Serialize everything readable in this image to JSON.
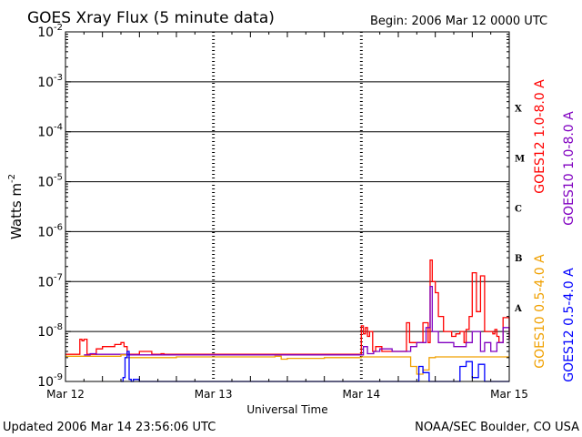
{
  "chart_data": {
    "type": "line",
    "title": "GOES Xray Flux (5 minute data)",
    "begin_label": "Begin:  2006 Mar 12 0000 UTC",
    "xlabel": "Universal Time",
    "ylabel_base": "Watts m",
    "ylabel_exp": "-2",
    "y_scale": "log",
    "ylim": [
      1e-09,
      0.01
    ],
    "xlim": [
      "2006-03-12 00:00",
      "2006-03-15 00:00"
    ],
    "x_ticks": [
      {
        "value": "2006-03-12 00:00",
        "label": "Mar 12"
      },
      {
        "value": "2006-03-13 00:00",
        "label": "Mar 13"
      },
      {
        "value": "2006-03-14 00:00",
        "label": "Mar 14"
      },
      {
        "value": "2006-03-15 00:00",
        "label": "Mar 15"
      }
    ],
    "y_ticks": [
      {
        "value": 0.01,
        "base": "10",
        "exp": "-2"
      },
      {
        "value": 0.001,
        "base": "10",
        "exp": "-3"
      },
      {
        "value": 0.0001,
        "base": "10",
        "exp": "-4"
      },
      {
        "value": 1e-05,
        "base": "10",
        "exp": "-5"
      },
      {
        "value": 1e-06,
        "base": "10",
        "exp": "-6"
      },
      {
        "value": 1e-07,
        "base": "10",
        "exp": "-7"
      },
      {
        "value": 1e-08,
        "base": "10",
        "exp": "-8"
      },
      {
        "value": 1e-09,
        "base": "10",
        "exp": "-9"
      }
    ],
    "grid_h": [
      0.001,
      0.0001,
      1e-05,
      1e-06,
      1e-07,
      1e-08
    ],
    "flare_classes": [
      {
        "label": "X",
        "value": 0.0003
      },
      {
        "label": "M",
        "value": 3e-05
      },
      {
        "label": "C",
        "value": 3e-06
      },
      {
        "label": "B",
        "value": 3e-07
      },
      {
        "label": "A",
        "value": 3e-08
      }
    ],
    "series": [
      {
        "name": "GOES12 1.0-8.0 A",
        "color": "#ff0000",
        "x": [
          "2006-03-12 00:00",
          "2006-03-12 02:00",
          "2006-03-12 02:20",
          "2006-03-12 02:40",
          "2006-03-12 03:00",
          "2006-03-12 03:30",
          "2006-03-12 04:10",
          "2006-03-12 05:00",
          "2006-03-12 06:00",
          "2006-03-12 08:00",
          "2006-03-12 09:00",
          "2006-03-12 09:30",
          "2006-03-12 10:00",
          "2006-03-12 11:30",
          "2006-03-12 12:00",
          "2006-03-12 14:00",
          "2006-03-12 15:00",
          "2006-03-12 15:30",
          "2006-03-12 16:00",
          "2006-03-12 16:30",
          "2006-03-12 17:00",
          "2006-03-12 24:00",
          "2006-03-13 06:00",
          "2006-03-13 12:00",
          "2006-03-13 18:00",
          "2006-03-13 23:30",
          "2006-03-14 00:00",
          "2006-03-14 00:20",
          "2006-03-14 00:40",
          "2006-03-14 01:00",
          "2006-03-14 01:20",
          "2006-03-14 01:50",
          "2006-03-14 02:20",
          "2006-03-14 03:20",
          "2006-03-14 04:20",
          "2006-03-14 05:00",
          "2006-03-14 06:00",
          "2006-03-14 07:20",
          "2006-03-14 07:50",
          "2006-03-14 09:10",
          "2006-03-14 10:00",
          "2006-03-14 10:50",
          "2006-03-14 11:10",
          "2006-03-14 11:30",
          "2006-03-14 12:00",
          "2006-03-14 12:30",
          "2006-03-14 13:20",
          "2006-03-14 14:00",
          "2006-03-14 14:40",
          "2006-03-14 15:20",
          "2006-03-14 16:00",
          "2006-03-14 16:40",
          "2006-03-14 17:00",
          "2006-03-14 17:30",
          "2006-03-14 18:00",
          "2006-03-14 18:40",
          "2006-03-14 19:20",
          "2006-03-14 20:00",
          "2006-03-14 21:20",
          "2006-03-14 21:40",
          "2006-03-14 22:00",
          "2006-03-14 22:20",
          "2006-03-14 23:00",
          "2006-03-15 00:00"
        ],
        "values": [
          3.5e-09,
          3.5e-09,
          7e-09,
          6.5e-09,
          7e-09,
          3.5e-09,
          3.5e-09,
          4.5e-09,
          5e-09,
          5.5e-09,
          6e-09,
          5e-09,
          3.5e-09,
          3.5e-09,
          4e-09,
          3.5e-09,
          3.5e-09,
          3.6e-09,
          3.5e-09,
          3.5e-09,
          3.5e-09,
          3.5e-09,
          3.5e-09,
          3.5e-09,
          3.5e-09,
          3.5e-09,
          1.3e-08,
          9e-09,
          1.2e-08,
          8e-09,
          1e-08,
          4e-09,
          5e-09,
          4e-09,
          4e-09,
          4e-09,
          4e-09,
          1.5e-08,
          6e-09,
          6e-09,
          1.5e-08,
          6e-09,
          2.7e-07,
          1e-07,
          6e-08,
          2e-08,
          1e-08,
          1e-08,
          8e-09,
          9e-09,
          1e-08,
          6e-09,
          1.1e-08,
          2e-08,
          1.5e-07,
          2.5e-08,
          1.3e-07,
          1e-08,
          9e-09,
          1.1e-08,
          8e-09,
          6e-09,
          1.9e-08,
          7e-09
        ]
      },
      {
        "name": "GOES10 1.0-8.0 A",
        "color": "#8000c0",
        "x": [
          "2006-03-12 03:00",
          "2006-03-12 04:00",
          "2006-03-12 05:00",
          "2006-03-12 06:00",
          "2006-03-12 08:00",
          "2006-03-12 10:00",
          "2006-03-12 12:00",
          "2006-03-12 18:00",
          "2006-03-13 00:00",
          "2006-03-13 12:00",
          "2006-03-14 00:00",
          "2006-03-14 00:20",
          "2006-03-14 01:00",
          "2006-03-14 02:00",
          "2006-03-14 03:00",
          "2006-03-14 05:00",
          "2006-03-14 07:00",
          "2006-03-14 08:00",
          "2006-03-14 09:00",
          "2006-03-14 10:30",
          "2006-03-14 11:10",
          "2006-03-14 11:30",
          "2006-03-14 12:30",
          "2006-03-14 14:00",
          "2006-03-14 15:00",
          "2006-03-14 16:00",
          "2006-03-14 17:00",
          "2006-03-14 18:00",
          "2006-03-14 19:00",
          "2006-03-14 19:20",
          "2006-03-14 20:00",
          "2006-03-14 20:30",
          "2006-03-14 21:00",
          "2006-03-14 22:00",
          "2006-03-14 23:00",
          "2006-03-15 00:00"
        ],
        "values": [
          3.4e-09,
          3.6e-09,
          3.5e-09,
          3.5e-09,
          3.5e-09,
          3.4e-09,
          3.4e-09,
          3.4e-09,
          3.4e-09,
          3.4e-09,
          3.4e-09,
          5e-09,
          3.6e-09,
          4e-09,
          4.5e-09,
          4e-09,
          4e-09,
          5e-09,
          6e-09,
          1.2e-08,
          8e-08,
          1e-08,
          6e-09,
          6e-09,
          5e-09,
          5e-09,
          6e-09,
          1e-08,
          1e-08,
          4e-09,
          6e-09,
          6e-09,
          4e-09,
          6e-09,
          1.2e-08,
          7e-09
        ]
      },
      {
        "name": "GOES10 0.5-4.0 A",
        "color": "#f0a000",
        "x": [
          "2006-03-12 00:00",
          "2006-03-12 06:00",
          "2006-03-12 08:00",
          "2006-03-12 09:00",
          "2006-03-12 10:00",
          "2006-03-12 12:00",
          "2006-03-12 18:00",
          "2006-03-13 00:00",
          "2006-03-13 06:00",
          "2006-03-13 10:00",
          "2006-03-13 11:00",
          "2006-03-13 12:00",
          "2006-03-13 18:00",
          "2006-03-14 00:00",
          "2006-03-14 06:00",
          "2006-03-14 08:00",
          "2006-03-14 09:00",
          "2006-03-14 10:00",
          "2006-03-14 11:00",
          "2006-03-14 12:00",
          "2006-03-14 13:00",
          "2006-03-14 18:00",
          "2006-03-15 00:00"
        ],
        "values": [
          3.2e-09,
          3.2e-09,
          3.2e-09,
          3.4e-09,
          3e-09,
          3e-09,
          3.1e-09,
          3.1e-09,
          3.1e-09,
          3.2e-09,
          2.8e-09,
          2.9e-09,
          3e-09,
          3.1e-09,
          3.1e-09,
          2e-09,
          1.4e-09,
          1.7e-09,
          3e-09,
          3.1e-09,
          3.1e-09,
          3.1e-09,
          3.1e-09
        ]
      },
      {
        "name": "GOES12 0.5-4.0 A",
        "color": "#0000ff",
        "x": [
          "2006-03-12 09:00",
          "2006-03-12 09:20",
          "2006-03-12 09:40",
          "2006-03-12 10:00",
          "2006-03-12 10:20",
          "2006-03-12 10:40",
          "2006-03-12 11:00",
          "2006-03-12 12:00",
          "2006-03-14 00:00",
          "2006-03-14 08:00",
          "2006-03-14 09:20",
          "2006-03-14 10:00",
          "2006-03-14 11:00",
          "2006-03-14 12:00",
          "2006-03-14 15:00",
          "2006-03-14 16:00",
          "2006-03-14 17:00",
          "2006-03-14 18:00",
          "2006-03-14 19:00",
          "2006-03-14 20:00",
          "2006-03-15 00:00"
        ],
        "values": [
          1e-09,
          1.2e-09,
          3e-09,
          4e-09,
          1.1e-09,
          1e-09,
          1.1e-09,
          1e-09,
          1e-09,
          1e-09,
          2e-09,
          1.5e-09,
          1e-09,
          1e-09,
          1e-09,
          2e-09,
          2.5e-09,
          1.2e-09,
          2.2e-09,
          1e-09,
          1e-09
        ]
      }
    ]
  },
  "legend_right": [
    "GOES12 1.0-8.0 A",
    "GOES10 1.0-8.0 A",
    "GOES12 0.5-4.0 A",
    "GOES10 0.5-4.0 A"
  ],
  "footer": {
    "updated": "Updated 2006 Mar 14 23:56:06 UTC",
    "credit": "NOAA/SEC Boulder, CO USA"
  }
}
